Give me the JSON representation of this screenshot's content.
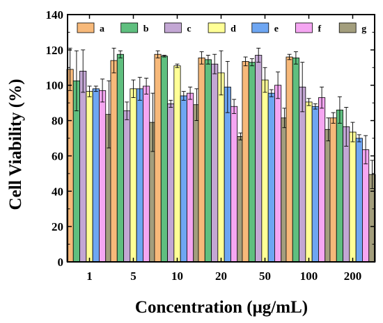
{
  "chart_data": {
    "type": "bar",
    "xlabel": "Concentration (μg/mL)",
    "ylabel": "Cell Viability (%)",
    "ylim": [
      0,
      140
    ],
    "yticks": [
      0,
      20,
      40,
      60,
      80,
      100,
      120,
      140
    ],
    "grid": false,
    "legend_position": "top",
    "categories": [
      "1",
      "5",
      "10",
      "20",
      "50",
      "100",
      "200"
    ],
    "series": [
      {
        "name": "a",
        "color": "#F7B97A",
        "values": [
          109,
          114,
          117.5,
          115.5,
          113.5,
          116,
          81.5
        ],
        "errors": [
          12,
          7,
          2,
          3.5,
          2.5,
          1.5,
          3
        ]
      },
      {
        "name": "b",
        "color": "#5FBF7F",
        "values": [
          102.5,
          117.5,
          116.5,
          114.5,
          113,
          115.5,
          86
        ],
        "errors": [
          17,
          2,
          0.5,
          2.5,
          2,
          3.5,
          7.5
        ]
      },
      {
        "name": "c",
        "color": "#C3A7D4",
        "values": [
          108,
          85.5,
          89.5,
          112,
          117,
          99,
          76.5
        ],
        "errors": [
          12,
          5,
          2,
          5.5,
          4,
          14,
          11
        ]
      },
      {
        "name": "d",
        "color": "#FFFF96",
        "values": [
          96.5,
          98,
          111,
          107,
          103,
          90.5,
          73.5
        ],
        "errors": [
          3,
          5,
          1,
          12.5,
          7,
          2,
          5.5
        ]
      },
      {
        "name": "e",
        "color": "#6EA6F2",
        "values": [
          98,
          98,
          94,
          99,
          95.5,
          88,
          70
        ],
        "errors": [
          1.5,
          6.5,
          2.5,
          14.5,
          2,
          1.5,
          2
        ]
      },
      {
        "name": "f",
        "color": "#F5A6F2",
        "values": [
          97,
          99.5,
          95.5,
          88,
          100,
          93,
          63.5
        ],
        "errors": [
          6.5,
          4.5,
          3.5,
          4,
          7.5,
          6,
          8
        ]
      },
      {
        "name": "g",
        "color": "#A39E7D",
        "values": [
          83.5,
          79,
          89,
          71,
          81.5,
          75,
          49.5
        ],
        "errors": [
          19,
          16.5,
          9,
          2,
          5.5,
          6.5,
          8
        ]
      }
    ]
  }
}
